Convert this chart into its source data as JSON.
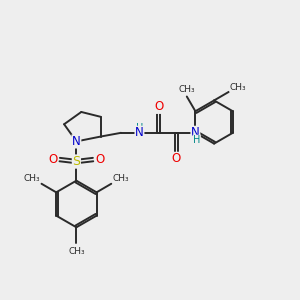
{
  "bg_color": "#eeeeee",
  "bond_color": "#2a2a2a",
  "bond_width": 1.4,
  "figsize": [
    3.0,
    3.0
  ],
  "dpi": 100,
  "atom_colors": {
    "N": "#0000cc",
    "O": "#ee0000",
    "S": "#bbbb00",
    "C": "#2a2a2a",
    "H": "#008888"
  },
  "xlim": [
    0,
    12
  ],
  "ylim": [
    0,
    12
  ]
}
